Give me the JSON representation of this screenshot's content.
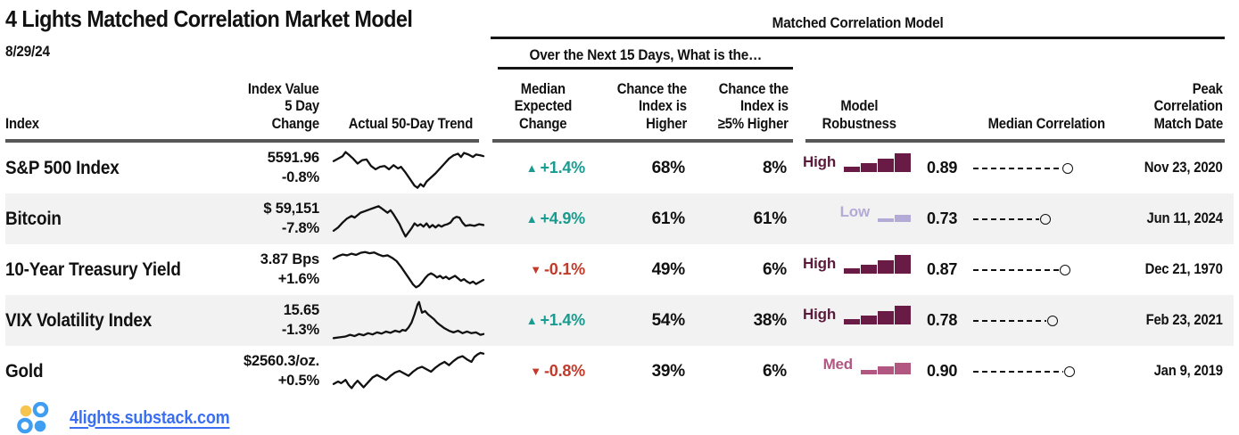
{
  "title": "4 Lights Matched Correlation Market Model",
  "date": "8/29/24",
  "group_headers": {
    "model": "Matched Correlation Model",
    "question": "Over the Next 15 Days, What is the…"
  },
  "columns": {
    "index": "Index",
    "value_line1": "Index Value",
    "value_line2": "5 Day Change",
    "trend": "Actual 50-Day Trend",
    "expected_line1": "Median",
    "expected_line2": "Expected",
    "expected_line3": "Change",
    "higher_line1": "Chance the",
    "higher_line2": "Index is",
    "higher_line3": "Higher",
    "higher5_line1": "Chance the",
    "higher5_line2": "Index is",
    "higher5_line3": "≥5% Higher",
    "robustness_line1": "Model",
    "robustness_line2": "Robustness",
    "correlation": "Median Correlation",
    "match_line1": "Peak",
    "match_line2": "Correlation",
    "match_line3": "Match Date"
  },
  "rows": [
    {
      "name": "S&P 500 Index",
      "value": "5591.96",
      "change": "-0.8%",
      "symbol": "▲",
      "direction": "up",
      "expected": "+1.4%",
      "chance_higher": "68%",
      "chance_5pct_higher": "8%",
      "robustness": "High",
      "correlation": "0.89",
      "match_date": "Nov 23, 2020",
      "sparkline": [
        [
          0,
          32
        ],
        [
          3,
          26
        ],
        [
          6,
          20
        ],
        [
          8,
          10
        ],
        [
          10,
          16
        ],
        [
          13,
          26
        ],
        [
          16,
          38
        ],
        [
          19,
          30
        ],
        [
          22,
          28
        ],
        [
          25,
          44
        ],
        [
          28,
          52
        ],
        [
          31,
          46
        ],
        [
          34,
          44
        ],
        [
          37,
          52
        ],
        [
          40,
          42
        ],
        [
          43,
          50
        ],
        [
          45,
          46
        ],
        [
          48,
          60
        ],
        [
          51,
          76
        ],
        [
          54,
          92
        ],
        [
          56,
          97
        ],
        [
          58,
          88
        ],
        [
          60,
          94
        ],
        [
          62,
          82
        ],
        [
          65,
          72
        ],
        [
          68,
          62
        ],
        [
          71,
          50
        ],
        [
          74,
          38
        ],
        [
          77,
          26
        ],
        [
          80,
          18
        ],
        [
          83,
          14
        ],
        [
          85,
          22
        ],
        [
          87,
          12
        ],
        [
          90,
          16
        ],
        [
          93,
          22
        ],
        [
          95,
          16
        ],
        [
          98,
          18
        ],
        [
          100,
          20
        ]
      ]
    },
    {
      "name": "Bitcoin",
      "value": "$ 59,151",
      "change": "-7.8%",
      "symbol": "▲",
      "direction": "up",
      "expected": "+4.9%",
      "chance_higher": "61%",
      "chance_5pct_higher": "61%",
      "robustness": "Low",
      "correlation": "0.73",
      "match_date": "Jun 11, 2024",
      "sparkline": [
        [
          0,
          78
        ],
        [
          3,
          70
        ],
        [
          6,
          58
        ],
        [
          9,
          48
        ],
        [
          12,
          42
        ],
        [
          14,
          46
        ],
        [
          16,
          40
        ],
        [
          18,
          34
        ],
        [
          21,
          30
        ],
        [
          24,
          26
        ],
        [
          27,
          22
        ],
        [
          30,
          18
        ],
        [
          33,
          26
        ],
        [
          36,
          34
        ],
        [
          38,
          28
        ],
        [
          40,
          38
        ],
        [
          42,
          50
        ],
        [
          44,
          62
        ],
        [
          46,
          78
        ],
        [
          48,
          92
        ],
        [
          50,
          82
        ],
        [
          52,
          72
        ],
        [
          54,
          60
        ],
        [
          56,
          66
        ],
        [
          58,
          62
        ],
        [
          60,
          68
        ],
        [
          62,
          60
        ],
        [
          64,
          70
        ],
        [
          66,
          64
        ],
        [
          68,
          70
        ],
        [
          70,
          64
        ],
        [
          72,
          68
        ],
        [
          74,
          64
        ],
        [
          76,
          62
        ],
        [
          78,
          58
        ],
        [
          80,
          48
        ],
        [
          82,
          44
        ],
        [
          84,
          46
        ],
        [
          86,
          58
        ],
        [
          88,
          66
        ],
        [
          91,
          64
        ],
        [
          94,
          66
        ],
        [
          97,
          62
        ],
        [
          100,
          64
        ]
      ]
    },
    {
      "name": "10-Year Treasury Yield",
      "value": "3.87 Bps",
      "change": "+1.6%",
      "symbol": "▼",
      "direction": "down",
      "expected": "-0.1%",
      "chance_higher": "49%",
      "chance_5pct_higher": "6%",
      "robustness": "High",
      "correlation": "0.87",
      "match_date": "Dec 21, 1970",
      "sparkline": [
        [
          0,
          22
        ],
        [
          3,
          16
        ],
        [
          6,
          12
        ],
        [
          9,
          14
        ],
        [
          12,
          10
        ],
        [
          15,
          13
        ],
        [
          18,
          8
        ],
        [
          21,
          6
        ],
        [
          24,
          9
        ],
        [
          27,
          7
        ],
        [
          30,
          12
        ],
        [
          33,
          16
        ],
        [
          36,
          14
        ],
        [
          39,
          20
        ],
        [
          42,
          28
        ],
        [
          45,
          42
        ],
        [
          48,
          58
        ],
        [
          51,
          74
        ],
        [
          53,
          85
        ],
        [
          55,
          92
        ],
        [
          57,
          88
        ],
        [
          59,
          80
        ],
        [
          61,
          70
        ],
        [
          63,
          62
        ],
        [
          65,
          58
        ],
        [
          67,
          62
        ],
        [
          69,
          68
        ],
        [
          71,
          64
        ],
        [
          73,
          70
        ],
        [
          75,
          66
        ],
        [
          77,
          72
        ],
        [
          79,
          68
        ],
        [
          81,
          64
        ],
        [
          83,
          70
        ],
        [
          85,
          76
        ],
        [
          87,
          72
        ],
        [
          89,
          78
        ],
        [
          91,
          82
        ],
        [
          93,
          78
        ],
        [
          95,
          84
        ],
        [
          97,
          80
        ],
        [
          100,
          74
        ]
      ]
    },
    {
      "name": "VIX Volatility Index",
      "value": "15.65",
      "change": "-1.3%",
      "symbol": "▲",
      "direction": "up",
      "expected": "+1.4%",
      "chance_higher": "54%",
      "chance_5pct_higher": "38%",
      "robustness": "High",
      "correlation": "0.78",
      "match_date": "Feb 23, 2021",
      "sparkline": [
        [
          0,
          92
        ],
        [
          4,
          90
        ],
        [
          8,
          88
        ],
        [
          11,
          84
        ],
        [
          14,
          87
        ],
        [
          17,
          82
        ],
        [
          20,
          85
        ],
        [
          23,
          80
        ],
        [
          26,
          83
        ],
        [
          29,
          78
        ],
        [
          32,
          81
        ],
        [
          35,
          76
        ],
        [
          38,
          79
        ],
        [
          41,
          74
        ],
        [
          44,
          77
        ],
        [
          46,
          72
        ],
        [
          48,
          74
        ],
        [
          50,
          66
        ],
        [
          52,
          54
        ],
        [
          54,
          34
        ],
        [
          56,
          10
        ],
        [
          57,
          4
        ],
        [
          58,
          18
        ],
        [
          59,
          30
        ],
        [
          61,
          26
        ],
        [
          63,
          34
        ],
        [
          65,
          40
        ],
        [
          67,
          46
        ],
        [
          69,
          54
        ],
        [
          71,
          60
        ],
        [
          74,
          68
        ],
        [
          77,
          74
        ],
        [
          80,
          78
        ],
        [
          83,
          74
        ],
        [
          86,
          80
        ],
        [
          89,
          76
        ],
        [
          92,
          80
        ],
        [
          95,
          78
        ],
        [
          98,
          84
        ],
        [
          100,
          82
        ]
      ]
    },
    {
      "name": "Gold",
      "value": "$2560.3/oz.",
      "change": "+0.5%",
      "symbol": "▼",
      "direction": "down",
      "expected": "-0.8%",
      "chance_higher": "39%",
      "chance_5pct_higher": "6%",
      "robustness": "Med",
      "correlation": "0.90",
      "match_date": "Jan 9, 2019",
      "sparkline": [
        [
          0,
          80
        ],
        [
          3,
          74
        ],
        [
          5,
          78
        ],
        [
          8,
          70
        ],
        [
          10,
          82
        ],
        [
          12,
          90
        ],
        [
          14,
          80
        ],
        [
          16,
          72
        ],
        [
          18,
          80
        ],
        [
          20,
          88
        ],
        [
          23,
          76
        ],
        [
          26,
          64
        ],
        [
          29,
          58
        ],
        [
          32,
          64
        ],
        [
          35,
          70
        ],
        [
          38,
          60
        ],
        [
          41,
          52
        ],
        [
          44,
          48
        ],
        [
          47,
          54
        ],
        [
          50,
          60
        ],
        [
          53,
          50
        ],
        [
          56,
          42
        ],
        [
          59,
          38
        ],
        [
          62,
          44
        ],
        [
          65,
          50
        ],
        [
          68,
          40
        ],
        [
          71,
          32
        ],
        [
          74,
          26
        ],
        [
          77,
          34
        ],
        [
          80,
          24
        ],
        [
          83,
          16
        ],
        [
          86,
          12
        ],
        [
          89,
          20
        ],
        [
          92,
          26
        ],
        [
          94,
          14
        ],
        [
          96,
          8
        ],
        [
          98,
          4
        ],
        [
          100,
          6
        ]
      ]
    }
  ],
  "robustness_levels": {
    "High": {
      "bars": [
        6,
        10,
        15,
        21
      ],
      "color": "#6a1b45",
      "text_color": "#5b1a3c"
    },
    "Med": {
      "bars": [
        5,
        9,
        13
      ],
      "color": "#b25782",
      "text_color": "#b25782"
    },
    "Low": {
      "bars": [
        4,
        8
      ],
      "color": "#b3aad6",
      "text_color": "#b3aad6"
    }
  },
  "footer": {
    "link_text": "4lights.substack.com",
    "logo_name": "four-lights-circles-logo"
  },
  "colors": {
    "positive_teal": "#1a9b90",
    "negative_red": "#c23a2a",
    "robust_high": "#6a1b45",
    "robust_med": "#b25782",
    "robust_low": "#b3aad6",
    "stripe_gray": "#f2f2f2",
    "rule_gray": "#575757",
    "link_blue": "#3a6ff2",
    "logo_blue": "#3f9ef2",
    "logo_yellow": "#f6c44f"
  },
  "chart_data": {
    "type": "table",
    "title": "4 Lights Matched Correlation Market Model",
    "as_of_date": "8/29/24",
    "column_groups": [
      "Over the Next 15 Days, What is the…",
      "Matched Correlation Model"
    ],
    "columns": [
      "Index",
      "Index Value / 5 Day Change",
      "Actual 50-Day Trend",
      "Median Expected Change",
      "Chance the Index is Higher",
      "Chance the Index is ≥5% Higher",
      "Model Robustness",
      "Median Correlation",
      "Peak Correlation Match Date"
    ],
    "rows": [
      [
        "S&P 500 Index",
        "5591.96 / -0.8%",
        "sparkline",
        "+1.4%",
        "68%",
        "8%",
        "High",
        0.89,
        "Nov 23, 2020"
      ],
      [
        "Bitcoin",
        "$ 59,151 / -7.8%",
        "sparkline",
        "+4.9%",
        "61%",
        "61%",
        "Low",
        0.73,
        "Jun 11, 2024"
      ],
      [
        "10-Year Treasury Yield",
        "3.87 Bps / +1.6%",
        "sparkline",
        "-0.1%",
        "49%",
        "6%",
        "High",
        0.87,
        "Dec 21, 1970"
      ],
      [
        "VIX Volatility Index",
        "15.65 / -1.3%",
        "sparkline",
        "+1.4%",
        "54%",
        "38%",
        "High",
        0.78,
        "Feb 23, 2021"
      ],
      [
        "Gold",
        "$2560.3/oz. / +0.5%",
        "sparkline",
        "-0.8%",
        "39%",
        "6%",
        "Med",
        0.9,
        "Jan 9, 2019"
      ]
    ],
    "note": "Actual 50-Day Trend sparkline shapes are stored as normalized [x,y] point lists (y=0 is top) in rows[].sparkline of this JSON; correlation lollipop length is proportional to Median Correlation."
  }
}
